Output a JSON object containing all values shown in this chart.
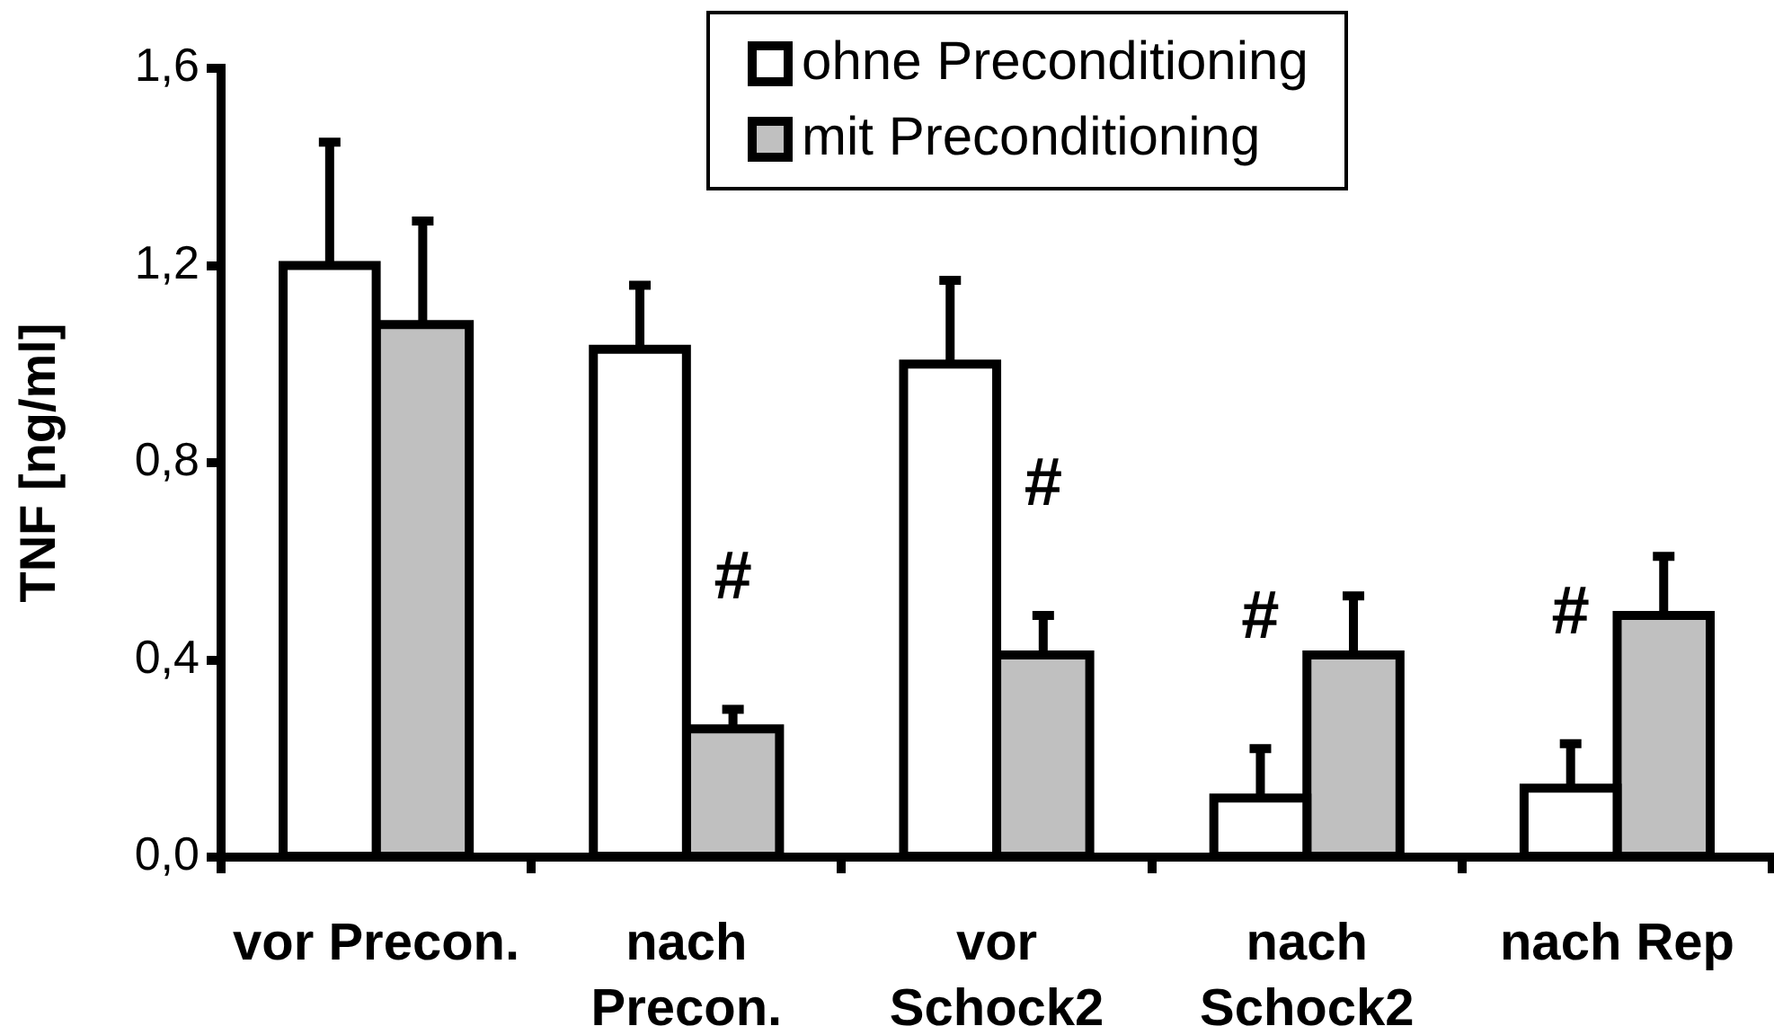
{
  "chart_data": {
    "type": "bar",
    "ylabel": "TNF [ng/ml]",
    "categories": [
      "vor Precon.",
      "nach Precon.",
      "vor Schock2",
      "nach Schock2",
      "nach Rep"
    ],
    "series": [
      {
        "name": "ohne Preconditioning",
        "color": "#ffffff",
        "values": [
          1.2,
          1.03,
          1.0,
          0.12,
          0.14
        ],
        "errors": [
          [
            1.2,
            1.45
          ],
          [
            1.03,
            1.16
          ],
          [
            1.0,
            1.17
          ],
          [
            0.12,
            0.22
          ],
          [
            0.14,
            0.23
          ]
        ],
        "value_labels": [
          null,
          null,
          null,
          "#",
          "#"
        ]
      },
      {
        "name": "mit Preconditioning",
        "color": "#c0c0c0",
        "values": [
          1.08,
          0.26,
          0.41,
          0.41,
          0.49
        ],
        "errors": [
          [
            1.08,
            1.29
          ],
          [
            0.26,
            0.3
          ],
          [
            0.41,
            0.49
          ],
          [
            0.41,
            0.53
          ],
          [
            0.49,
            0.61
          ]
        ],
        "value_labels": [
          null,
          "#",
          "#",
          null,
          null
        ]
      }
    ],
    "ylim": [
      0,
      1.6
    ],
    "yticks": [
      {
        "value": 0,
        "label": "0,0"
      },
      {
        "value": 0.4,
        "label": "0,4"
      },
      {
        "value": 0.8,
        "label": "0,8"
      },
      {
        "value": 1.2,
        "label": "1,2"
      },
      {
        "value": 1.6,
        "label": "1,6"
      }
    ],
    "legend": "top"
  }
}
